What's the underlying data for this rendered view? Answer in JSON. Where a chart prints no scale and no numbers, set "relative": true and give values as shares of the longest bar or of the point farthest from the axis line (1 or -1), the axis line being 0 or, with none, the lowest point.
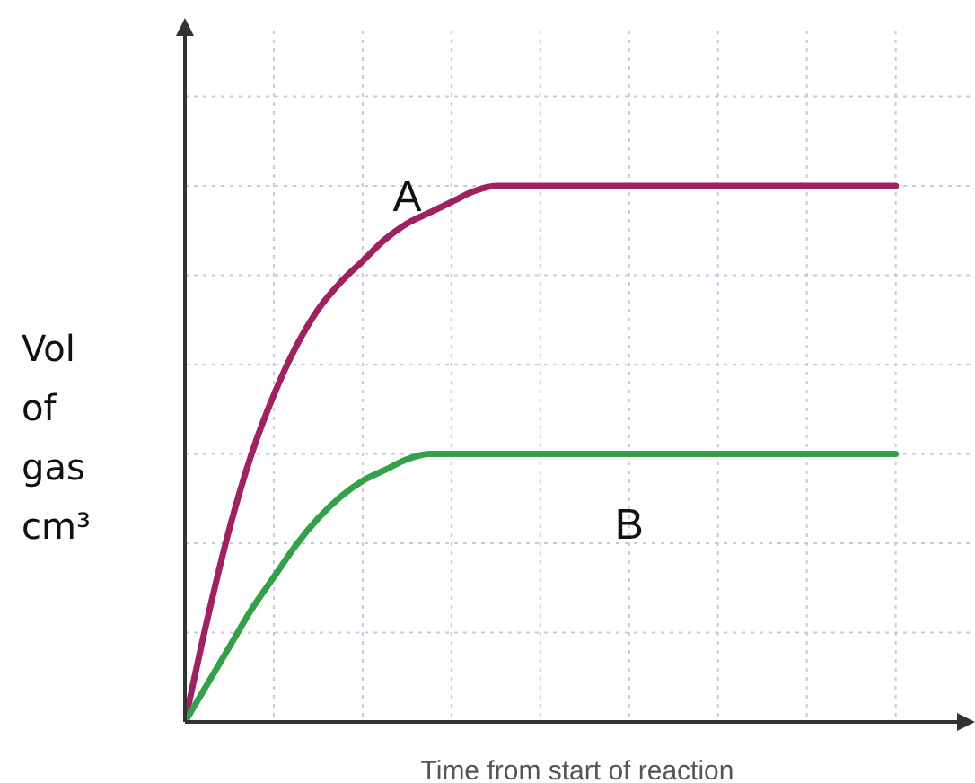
{
  "chart_data": {
    "type": "line",
    "relative": true,
    "grid": true,
    "xlabel": "Time from start of reaction",
    "ylabel": "Vol of gas cm³",
    "categories": [
      null,
      null,
      null,
      null,
      null,
      null,
      null,
      null,
      null,
      null,
      null,
      null,
      null,
      null,
      null,
      null,
      null,
      null,
      null,
      null,
      null,
      null,
      null,
      null,
      null,
      null,
      null,
      null,
      null,
      null,
      null,
      null,
      null
    ],
    "series": [
      {
        "name": "A",
        "color": "#a0215f",
        "values": [
          0,
          0.19,
          0.36,
          0.5,
          0.61,
          0.7,
          0.77,
          0.82,
          0.86,
          0.9,
          0.93,
          0.95,
          0.97,
          0.99,
          1,
          1,
          1,
          1,
          1,
          1,
          1,
          1,
          1,
          1,
          1,
          1,
          1,
          1,
          1,
          1,
          1,
          1,
          1
        ]
      },
      {
        "name": "B",
        "color": "#34a14a",
        "values": [
          0,
          0.07,
          0.14,
          0.21,
          0.27,
          0.33,
          0.38,
          0.42,
          0.45,
          0.47,
          0.49,
          0.5,
          0.5,
          0.5,
          0.5,
          0.5,
          0.5,
          0.5,
          0.5,
          0.5,
          0.5,
          0.5,
          0.5,
          0.5,
          0.5,
          0.5,
          0.5,
          0.5,
          0.5,
          0.5,
          0.5,
          0.5,
          0.5
        ]
      }
    ]
  }
}
